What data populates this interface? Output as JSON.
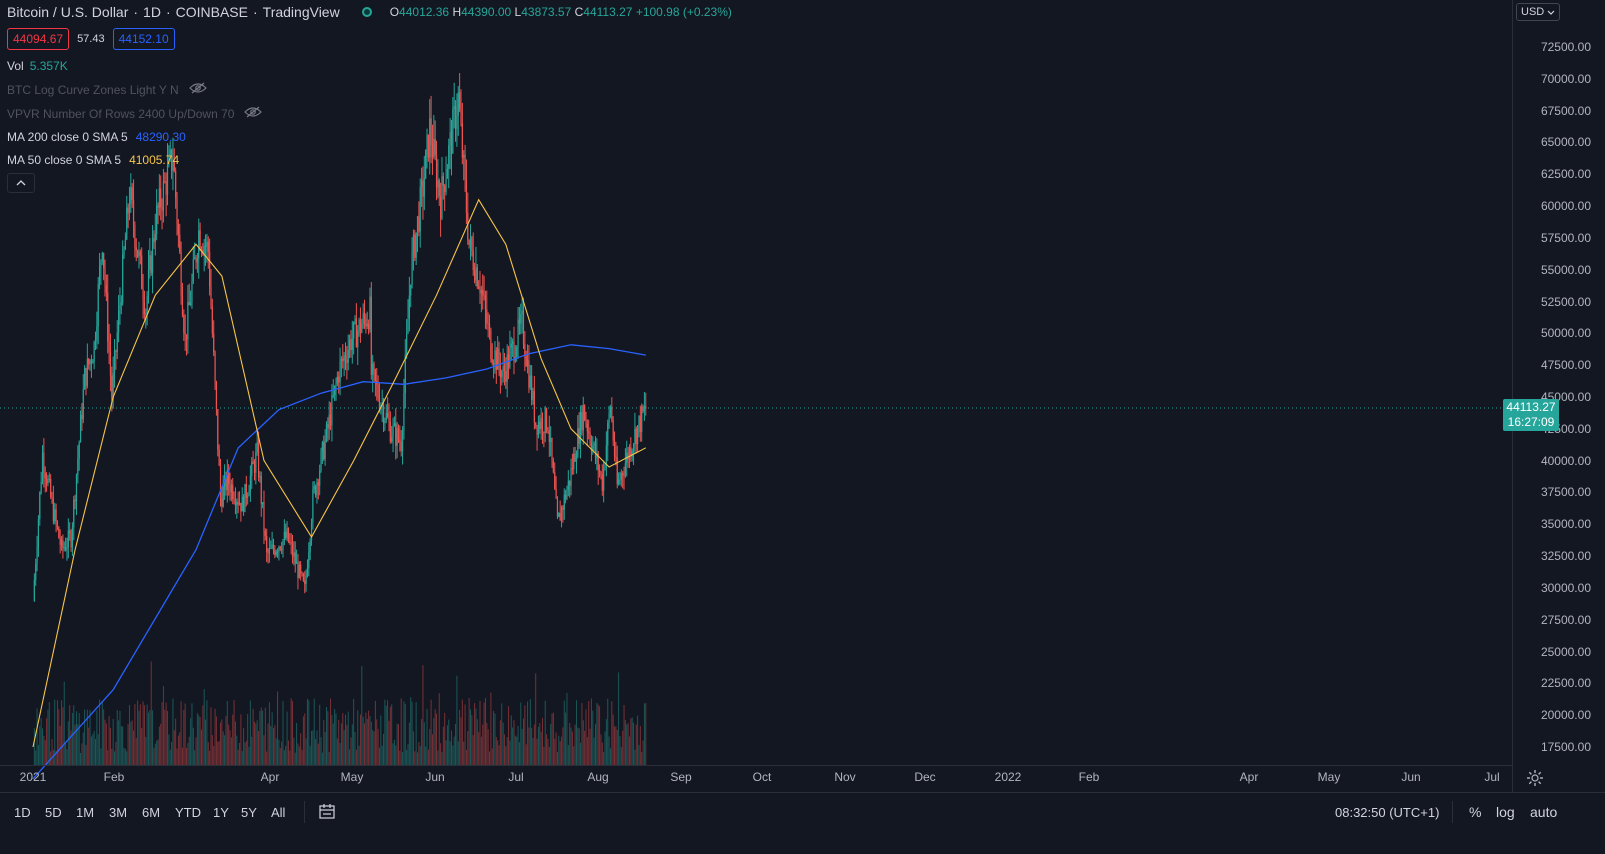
{
  "header": {
    "symbol": "Bitcoin / U.S. Dollar",
    "interval": "1D",
    "exchange": "COINBASE",
    "source": "TradingView",
    "open_label": "O",
    "open": "44012.36",
    "high_label": "H",
    "high": "44390.00",
    "low_label": "L",
    "low": "43873.57",
    "close_label": "C",
    "close": "44113.27",
    "change": "+100.98 (+0.23%)"
  },
  "quote": {
    "bid": "44094.67",
    "spread": "57.43",
    "ask": "44152.10"
  },
  "indicators": {
    "vol_label": "Vol",
    "vol_value": "5.357K",
    "log_curve": "BTC Log Curve Zones Light Y N",
    "vpvr": "VPVR Number Of Rows 2400 Up/Down 70",
    "ma200_label": "MA 200 close 0 SMA 5",
    "ma200_value": "48290.30",
    "ma50_label": "MA 50 close 0 SMA 5",
    "ma50_value": "41005.74"
  },
  "currency": "USD",
  "last_price_tag": {
    "price": "44113.27",
    "countdown": "16:27:09"
  },
  "bottom_bar": {
    "ranges": [
      "1D",
      "5D",
      "1M",
      "3M",
      "6M",
      "YTD",
      "1Y",
      "5Y",
      "All"
    ],
    "clock": "08:32:50 (UTC+1)",
    "percent": "%",
    "log": "log",
    "auto": "auto"
  },
  "colors": {
    "background": "#131722",
    "up": "#26a69a",
    "down": "#ef5350",
    "ma200": "#2962ff",
    "ma50": "#f7c548",
    "axis_text": "#b2b5be"
  },
  "icons": [
    "live-status-icon",
    "eye-off-icon",
    "chevron-up-icon",
    "chevron-down-icon",
    "calendar-icon",
    "gear-icon"
  ],
  "chart_data": {
    "type": "candlestick",
    "y_ticks": [
      "72500.00",
      "70000.00",
      "67500.00",
      "65000.00",
      "62500.00",
      "60000.00",
      "57500.00",
      "55000.00",
      "52500.00",
      "50000.00",
      "47500.00",
      "45000.00",
      "42500.00",
      "40000.00",
      "37500.00",
      "35000.00",
      "32500.00",
      "30000.00",
      "27500.00",
      "25000.00",
      "22500.00",
      "20000.00",
      "17500.00"
    ],
    "x_ticks": [
      "2021",
      "Feb",
      "Apr",
      "May",
      "Jun",
      "Jul",
      "Aug",
      "Sep",
      "Oct",
      "Nov",
      "Dec",
      "2022",
      "Feb",
      "Apr",
      "May",
      "Jun",
      "Jul"
    ],
    "close_series": [
      {
        "date": "2021-01-01",
        "close": 29000
      },
      {
        "date": "2021-01-08",
        "close": 40500
      },
      {
        "date": "2021-01-15",
        "close": 36500
      },
      {
        "date": "2021-01-22",
        "close": 33000
      },
      {
        "date": "2021-01-29",
        "close": 34000
      },
      {
        "date": "2021-02-08",
        "close": 46500
      },
      {
        "date": "2021-02-15",
        "close": 49000
      },
      {
        "date": "2021-02-21",
        "close": 57500
      },
      {
        "date": "2021-02-28",
        "close": 45000
      },
      {
        "date": "2021-03-13",
        "close": 61000
      },
      {
        "date": "2021-03-25",
        "close": 52000
      },
      {
        "date": "2021-04-01",
        "close": 58800
      },
      {
        "date": "2021-04-14",
        "close": 64000
      },
      {
        "date": "2021-04-23",
        "close": 49500
      },
      {
        "date": "2021-05-03",
        "close": 58000
      },
      {
        "date": "2021-05-10",
        "close": 56500
      },
      {
        "date": "2021-05-19",
        "close": 37000
      },
      {
        "date": "2021-05-24",
        "close": 38500
      },
      {
        "date": "2021-06-04",
        "close": 36500
      },
      {
        "date": "2021-06-15",
        "close": 40500
      },
      {
        "date": "2021-06-22",
        "close": 32500
      },
      {
        "date": "2021-07-01",
        "close": 33500
      },
      {
        "date": "2021-07-07",
        "close": 34000
      },
      {
        "date": "2021-07-20",
        "close": 29800
      },
      {
        "date": "2021-07-26",
        "close": 37000
      },
      {
        "date": "2021-08-06",
        "close": 42500
      },
      {
        "date": "2021-08-14",
        "close": 47000
      },
      {
        "date": "2021-08-23",
        "close": 49500
      },
      {
        "date": "2021-09-06",
        "close": 51700
      },
      {
        "date": "2021-09-07",
        "close": 46800
      },
      {
        "date": "2021-09-21",
        "close": 42500
      },
      {
        "date": "2021-09-29",
        "close": 41500
      },
      {
        "date": "2021-10-06",
        "close": 55000
      },
      {
        "date": "2021-10-15",
        "close": 61500
      },
      {
        "date": "2021-10-20",
        "close": 66000
      },
      {
        "date": "2021-10-28",
        "close": 60500
      },
      {
        "date": "2021-11-10",
        "close": 68500
      },
      {
        "date": "2021-11-18",
        "close": 57000
      },
      {
        "date": "2021-11-26",
        "close": 54000
      },
      {
        "date": "2021-12-04",
        "close": 49000
      },
      {
        "date": "2021-12-13",
        "close": 46800
      },
      {
        "date": "2021-12-27",
        "close": 50700
      },
      {
        "date": "2022-01-06",
        "close": 43000
      },
      {
        "date": "2022-01-15",
        "close": 43100
      },
      {
        "date": "2022-01-22",
        "close": 35000
      },
      {
        "date": "2022-01-31",
        "close": 38500
      },
      {
        "date": "2022-02-10",
        "close": 44000
      },
      {
        "date": "2022-02-24",
        "close": 38300
      },
      {
        "date": "2022-03-02",
        "close": 44400
      },
      {
        "date": "2022-03-07",
        "close": 38000
      },
      {
        "date": "2022-03-19",
        "close": 41800
      },
      {
        "date": "2022-03-28",
        "close": 44113
      }
    ],
    "ma200": [
      {
        "date": "2021-01-01",
        "value": 15000
      },
      {
        "date": "2021-03-01",
        "value": 22000
      },
      {
        "date": "2021-05-01",
        "value": 33000
      },
      {
        "date": "2021-06-01",
        "value": 41000
      },
      {
        "date": "2021-07-01",
        "value": 44000
      },
      {
        "date": "2021-08-01",
        "value": 45300
      },
      {
        "date": "2021-09-01",
        "value": 46200
      },
      {
        "date": "2021-10-01",
        "value": 46000
      },
      {
        "date": "2021-11-01",
        "value": 46500
      },
      {
        "date": "2021-12-01",
        "value": 47200
      },
      {
        "date": "2022-01-01",
        "value": 48400
      },
      {
        "date": "2022-02-01",
        "value": 49100
      },
      {
        "date": "2022-03-01",
        "value": 48800
      },
      {
        "date": "2022-03-28",
        "value": 48290
      }
    ],
    "ma50": [
      {
        "date": "2021-01-01",
        "value": 17500
      },
      {
        "date": "2021-02-01",
        "value": 33000
      },
      {
        "date": "2021-03-01",
        "value": 45000
      },
      {
        "date": "2021-04-01",
        "value": 53000
      },
      {
        "date": "2021-05-01",
        "value": 57000
      },
      {
        "date": "2021-05-20",
        "value": 54500
      },
      {
        "date": "2021-06-20",
        "value": 40000
      },
      {
        "date": "2021-07-25",
        "value": 34000
      },
      {
        "date": "2021-08-25",
        "value": 40000
      },
      {
        "date": "2021-09-25",
        "value": 46500
      },
      {
        "date": "2021-10-25",
        "value": 53000
      },
      {
        "date": "2021-11-25",
        "value": 60500
      },
      {
        "date": "2021-12-15",
        "value": 57000
      },
      {
        "date": "2022-01-10",
        "value": 48000
      },
      {
        "date": "2022-02-01",
        "value": 42500
      },
      {
        "date": "2022-03-01",
        "value": 39500
      },
      {
        "date": "2022-03-28",
        "value": 41005
      }
    ]
  }
}
